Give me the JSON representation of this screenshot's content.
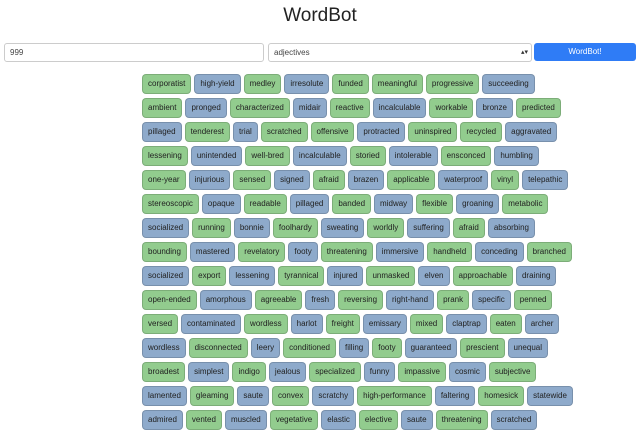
{
  "header": {
    "title": "WordBot"
  },
  "form": {
    "count_input": "999",
    "category_select": "adjectives",
    "button": "WordBot!"
  },
  "palette": {
    "green": "#92cc8e",
    "blue": "#8eaacb"
  },
  "rows": [
    [
      [
        "corporatist",
        "green"
      ],
      [
        "high-yield",
        "blue"
      ],
      [
        "medley",
        "green"
      ],
      [
        "irresolute",
        "blue"
      ],
      [
        "funded",
        "green"
      ],
      [
        "meaningful",
        "green"
      ],
      [
        "progressive",
        "green"
      ],
      [
        "succeeding",
        "blue"
      ]
    ],
    [
      [
        "ambient",
        "green"
      ],
      [
        "pronged",
        "blue"
      ],
      [
        "characterized",
        "green"
      ],
      [
        "midair",
        "blue"
      ],
      [
        "reactive",
        "green"
      ],
      [
        "incalculable",
        "blue"
      ],
      [
        "workable",
        "green"
      ],
      [
        "bronze",
        "blue"
      ],
      [
        "predicted",
        "green"
      ]
    ],
    [
      [
        "pillaged",
        "blue"
      ],
      [
        "tenderest",
        "green"
      ],
      [
        "trial",
        "blue"
      ],
      [
        "scratched",
        "green"
      ],
      [
        "offensive",
        "green"
      ],
      [
        "protracted",
        "blue"
      ],
      [
        "uninspired",
        "green"
      ],
      [
        "recycled",
        "green"
      ],
      [
        "aggravated",
        "blue"
      ]
    ],
    [
      [
        "lessening",
        "green"
      ],
      [
        "unintended",
        "blue"
      ],
      [
        "well-bred",
        "green"
      ],
      [
        "incalculable",
        "blue"
      ],
      [
        "storied",
        "green"
      ],
      [
        "intolerable",
        "blue"
      ],
      [
        "ensconced",
        "green"
      ],
      [
        "humbling",
        "blue"
      ]
    ],
    [
      [
        "one-year",
        "green"
      ],
      [
        "injurious",
        "blue"
      ],
      [
        "sensed",
        "green"
      ],
      [
        "signed",
        "blue"
      ],
      [
        "afraid",
        "green"
      ],
      [
        "brazen",
        "blue"
      ],
      [
        "applicable",
        "green"
      ],
      [
        "waterproof",
        "blue"
      ],
      [
        "vinyl",
        "green"
      ],
      [
        "telepathic",
        "blue"
      ]
    ],
    [
      [
        "stereoscopic",
        "green"
      ],
      [
        "opaque",
        "blue"
      ],
      [
        "readable",
        "green"
      ],
      [
        "pillaged",
        "blue"
      ],
      [
        "banded",
        "green"
      ],
      [
        "midway",
        "blue"
      ],
      [
        "flexible",
        "green"
      ],
      [
        "groaning",
        "blue"
      ],
      [
        "metabolic",
        "green"
      ]
    ],
    [
      [
        "socialized",
        "blue"
      ],
      [
        "running",
        "green"
      ],
      [
        "bonnie",
        "blue"
      ],
      [
        "foolhardy",
        "green"
      ],
      [
        "sweating",
        "blue"
      ],
      [
        "worldly",
        "green"
      ],
      [
        "suffering",
        "blue"
      ],
      [
        "afraid",
        "green"
      ],
      [
        "absorbing",
        "blue"
      ]
    ],
    [
      [
        "bounding",
        "green"
      ],
      [
        "mastered",
        "blue"
      ],
      [
        "revelatory",
        "green"
      ],
      [
        "footy",
        "blue"
      ],
      [
        "threatening",
        "green"
      ],
      [
        "immersive",
        "blue"
      ],
      [
        "handheld",
        "green"
      ],
      [
        "conceding",
        "blue"
      ],
      [
        "branched",
        "green"
      ]
    ],
    [
      [
        "socialized",
        "blue"
      ],
      [
        "export",
        "green"
      ],
      [
        "lessening",
        "blue"
      ],
      [
        "tyrannical",
        "green"
      ],
      [
        "injured",
        "blue"
      ],
      [
        "unmasked",
        "green"
      ],
      [
        "elven",
        "blue"
      ],
      [
        "approachable",
        "green"
      ],
      [
        "draining",
        "blue"
      ]
    ],
    [
      [
        "open-ended",
        "green"
      ],
      [
        "amorphous",
        "blue"
      ],
      [
        "agreeable",
        "green"
      ],
      [
        "fresh",
        "blue"
      ],
      [
        "reversing",
        "green"
      ],
      [
        "right-hand",
        "blue"
      ],
      [
        "prank",
        "green"
      ],
      [
        "specific",
        "blue"
      ],
      [
        "penned",
        "green"
      ]
    ],
    [
      [
        "versed",
        "green"
      ],
      [
        "contaminated",
        "blue"
      ],
      [
        "wordless",
        "green"
      ],
      [
        "harlot",
        "blue"
      ],
      [
        "freight",
        "green"
      ],
      [
        "emissary",
        "blue"
      ],
      [
        "mixed",
        "green"
      ],
      [
        "claptrap",
        "blue"
      ],
      [
        "eaten",
        "green"
      ],
      [
        "archer",
        "blue"
      ]
    ],
    [
      [
        "wordless",
        "blue"
      ],
      [
        "disconnected",
        "green"
      ],
      [
        "leery",
        "blue"
      ],
      [
        "conditioned",
        "green"
      ],
      [
        "filling",
        "blue"
      ],
      [
        "footy",
        "green"
      ],
      [
        "guaranteed",
        "blue"
      ],
      [
        "prescient",
        "green"
      ],
      [
        "unequal",
        "blue"
      ]
    ],
    [
      [
        "broadest",
        "green"
      ],
      [
        "simplest",
        "blue"
      ],
      [
        "indigo",
        "green"
      ],
      [
        "jealous",
        "blue"
      ],
      [
        "specialized",
        "green"
      ],
      [
        "funny",
        "blue"
      ],
      [
        "impassive",
        "green"
      ],
      [
        "cosmic",
        "blue"
      ],
      [
        "subjective",
        "green"
      ]
    ],
    [
      [
        "lamented",
        "blue"
      ],
      [
        "gleaming",
        "green"
      ],
      [
        "saute",
        "blue"
      ],
      [
        "convex",
        "green"
      ],
      [
        "scratchy",
        "blue"
      ],
      [
        "high-performance",
        "green"
      ],
      [
        "faltering",
        "blue"
      ],
      [
        "homesick",
        "green"
      ],
      [
        "statewide",
        "blue"
      ]
    ],
    [
      [
        "admired",
        "blue"
      ],
      [
        "vented",
        "green"
      ],
      [
        "muscled",
        "blue"
      ],
      [
        "vegetative",
        "green"
      ],
      [
        "elastic",
        "blue"
      ],
      [
        "elective",
        "green"
      ],
      [
        "saute",
        "blue"
      ],
      [
        "threatening",
        "green"
      ],
      [
        "scratched",
        "blue"
      ]
    ]
  ]
}
